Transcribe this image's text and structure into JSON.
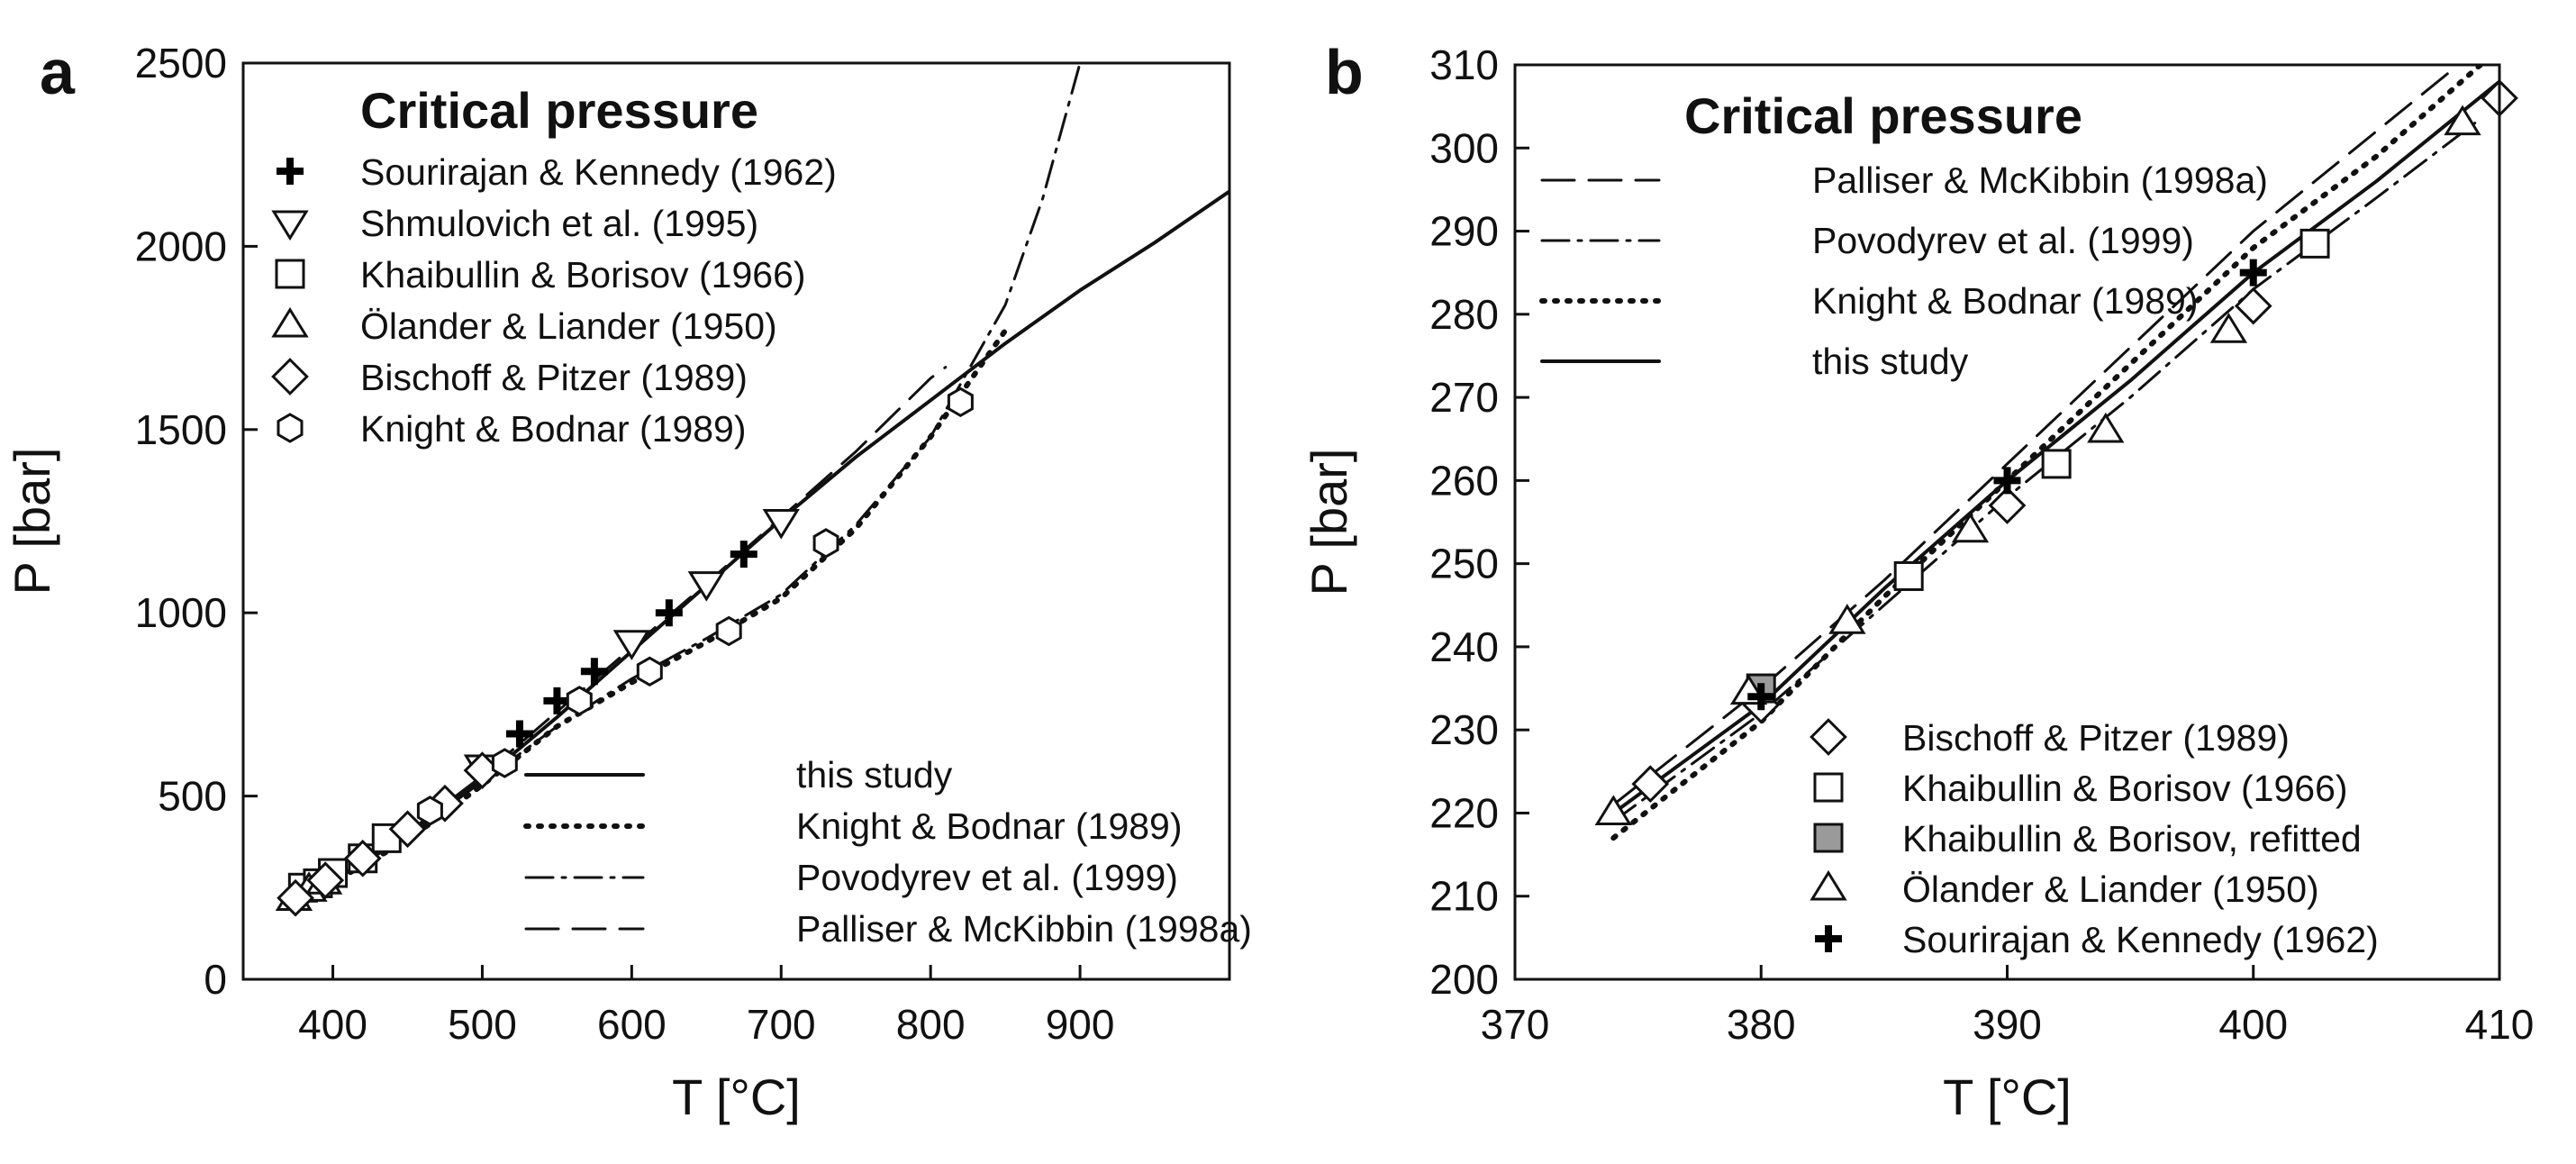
{
  "chart_data": [
    {
      "panel_label": "a",
      "type": "scatter",
      "title": "Critical pressure",
      "xlabel": "T [°C]",
      "ylabel": "P [bar]",
      "xlim": [
        340,
        1000
      ],
      "ylim": [
        0,
        2500
      ],
      "xticks": [
        400,
        500,
        600,
        700,
        800,
        900
      ],
      "yticks": [
        0,
        500,
        1000,
        1500,
        2000,
        2500
      ],
      "grid": false,
      "legend_markers_position": "top-left",
      "legend_lines_position": "bottom-right",
      "marker_series": [
        {
          "name": "Sourirajan & Kennedy (1962)",
          "marker": "plus",
          "points": [
            [
              525,
              670
            ],
            [
              550,
              760
            ],
            [
              575,
              840
            ],
            [
              625,
              1000
            ],
            [
              675,
              1160
            ]
          ]
        },
        {
          "name": "Shmulovich et al. (1995)",
          "marker": "triangle-down",
          "points": [
            [
              500,
              580
            ],
            [
              600,
              920
            ],
            [
              650,
              1080
            ],
            [
              700,
              1250
            ]
          ]
        },
        {
          "name": "Khaibullin & Borisov (1966)",
          "marker": "square",
          "points": [
            [
              380,
              250
            ],
            [
              390,
              262
            ],
            [
              400,
              290
            ],
            [
              420,
              330
            ],
            [
              436,
              385
            ]
          ]
        },
        {
          "name": "Ölander & Liander (1950)",
          "marker": "triangle-up",
          "points": [
            [
              374,
              220
            ],
            [
              384,
              245
            ],
            [
              394,
              265
            ]
          ]
        },
        {
          "name": "Bischoff & Pitzer (1989)",
          "marker": "diamond",
          "points": [
            [
              375,
              222
            ],
            [
              395,
              270
            ],
            [
              420,
              330
            ],
            [
              450,
              410
            ],
            [
              475,
              480
            ],
            [
              500,
              570
            ]
          ]
        },
        {
          "name": "Knight & Bodnar (1989)",
          "marker": "hexagon",
          "points": [
            [
              465,
              460
            ],
            [
              515,
              590
            ],
            [
              565,
              760
            ],
            [
              612,
              840
            ],
            [
              665,
              950
            ],
            [
              730,
              1190
            ],
            [
              820,
              1575
            ]
          ]
        }
      ],
      "line_series": [
        {
          "name": "this study",
          "style": "solid",
          "points": [
            [
              374,
              215
            ],
            [
              400,
              270
            ],
            [
              450,
              390
            ],
            [
              500,
              545
            ],
            [
              550,
              715
            ],
            [
              600,
              895
            ],
            [
              650,
              1075
            ],
            [
              700,
              1255
            ],
            [
              750,
              1425
            ],
            [
              800,
              1580
            ],
            [
              850,
              1735
            ],
            [
              900,
              1880
            ],
            [
              950,
              2010
            ],
            [
              1000,
              2150
            ]
          ]
        },
        {
          "name": "Knight & Bodnar (1989)",
          "style": "dotted",
          "points": [
            [
              374,
              215
            ],
            [
              400,
              265
            ],
            [
              450,
              380
            ],
            [
              500,
              530
            ],
            [
              550,
              690
            ],
            [
              600,
              810
            ],
            [
              650,
              920
            ],
            [
              700,
              1040
            ],
            [
              750,
              1230
            ],
            [
              800,
              1480
            ],
            [
              850,
              1770
            ]
          ]
        },
        {
          "name": "Povodyrev et al. (1999)",
          "style": "dash-dot",
          "points": [
            [
              374,
              215
            ],
            [
              400,
              268
            ],
            [
              450,
              390
            ],
            [
              500,
              540
            ],
            [
              550,
              690
            ],
            [
              600,
              820
            ],
            [
              650,
              930
            ],
            [
              700,
              1050
            ],
            [
              750,
              1240
            ],
            [
              800,
              1480
            ],
            [
              850,
              1840
            ],
            [
              875,
              2130
            ],
            [
              900,
              2500
            ]
          ]
        },
        {
          "name": "Palliser & McKibbin (1998a)",
          "style": "dashed",
          "points": [
            [
              374,
              215
            ],
            [
              400,
              270
            ],
            [
              450,
              400
            ],
            [
              500,
              555
            ],
            [
              550,
              730
            ],
            [
              600,
              905
            ],
            [
              650,
              1080
            ],
            [
              700,
              1260
            ],
            [
              750,
              1440
            ],
            [
              800,
              1640
            ],
            [
              810,
              1670
            ]
          ]
        }
      ]
    },
    {
      "panel_label": "b",
      "type": "scatter",
      "title": "Critical pressure",
      "xlabel": "T [°C]",
      "ylabel": "P [bar]",
      "xlim": [
        370,
        410
      ],
      "ylim": [
        200,
        310
      ],
      "xticks": [
        370,
        380,
        390,
        400,
        410
      ],
      "yticks": [
        200,
        210,
        220,
        230,
        240,
        250,
        260,
        270,
        280,
        290,
        300,
        310
      ],
      "grid": false,
      "legend_lines_position": "top-left",
      "legend_markers_position": "bottom-right",
      "line_series": [
        {
          "name": "Palliser & McKibbin (1998a)",
          "style": "dashed",
          "points": [
            [
              374,
              221
            ],
            [
              380,
              235
            ],
            [
              385,
              248
            ],
            [
              390,
              262
            ],
            [
              395,
              276
            ],
            [
              400,
              290
            ],
            [
              405,
              302
            ],
            [
              410,
              314
            ]
          ]
        },
        {
          "name": "Povodyrev et al. (1999)",
          "style": "dash-dot",
          "points": [
            [
              374,
              219
            ],
            [
              380,
              232
            ],
            [
              385,
              245
            ],
            [
              390,
              258
            ],
            [
              395,
              270
            ],
            [
              400,
              283
            ],
            [
              405,
              294
            ],
            [
              409,
              303
            ]
          ]
        },
        {
          "name": "Knight & Bodnar (1989)",
          "style": "dotted",
          "points": [
            [
              374,
              217
            ],
            [
              380,
              231
            ],
            [
              385,
              246
            ],
            [
              390,
              260
            ],
            [
              395,
              274
            ],
            [
              400,
              288
            ],
            [
              405,
              299
            ],
            [
              410,
              312
            ]
          ]
        },
        {
          "name": "this study",
          "style": "solid",
          "points": [
            [
              374,
              220
            ],
            [
              380,
              233
            ],
            [
              385,
              247
            ],
            [
              390,
              260
            ],
            [
              395,
              272
            ],
            [
              400,
              285
            ],
            [
              405,
              296
            ],
            [
              410,
              308
            ]
          ]
        }
      ],
      "marker_series": [
        {
          "name": "Bischoff & Pitzer (1989)",
          "marker": "diamond",
          "points": [
            [
              375.5,
              223.5
            ],
            [
              380,
              233
            ],
            [
              390,
              257
            ],
            [
              400,
              281
            ],
            [
              410,
              306
            ]
          ]
        },
        {
          "name": "Khaibullin & Borisov (1966)",
          "marker": "square",
          "points": [
            [
              386,
              248.5
            ],
            [
              392,
              262
            ],
            [
              402.5,
              288.5
            ]
          ]
        },
        {
          "name": "Khaibullin & Borisov, refitted",
          "marker": "square-filled",
          "points": [
            [
              380,
              235
            ]
          ]
        },
        {
          "name": "Ölander & Liander (1950)",
          "marker": "triangle-up",
          "points": [
            [
              374,
              220
            ],
            [
              379.5,
              234.5
            ],
            [
              383.5,
              243
            ],
            [
              388.5,
              254
            ],
            [
              394,
              266
            ],
            [
              399,
              278
            ],
            [
              408.5,
              303
            ]
          ]
        },
        {
          "name": "Sourirajan & Kennedy (1962)",
          "marker": "plus",
          "points": [
            [
              380,
              234
            ],
            [
              390,
              260
            ],
            [
              400,
              285
            ]
          ]
        }
      ]
    }
  ]
}
